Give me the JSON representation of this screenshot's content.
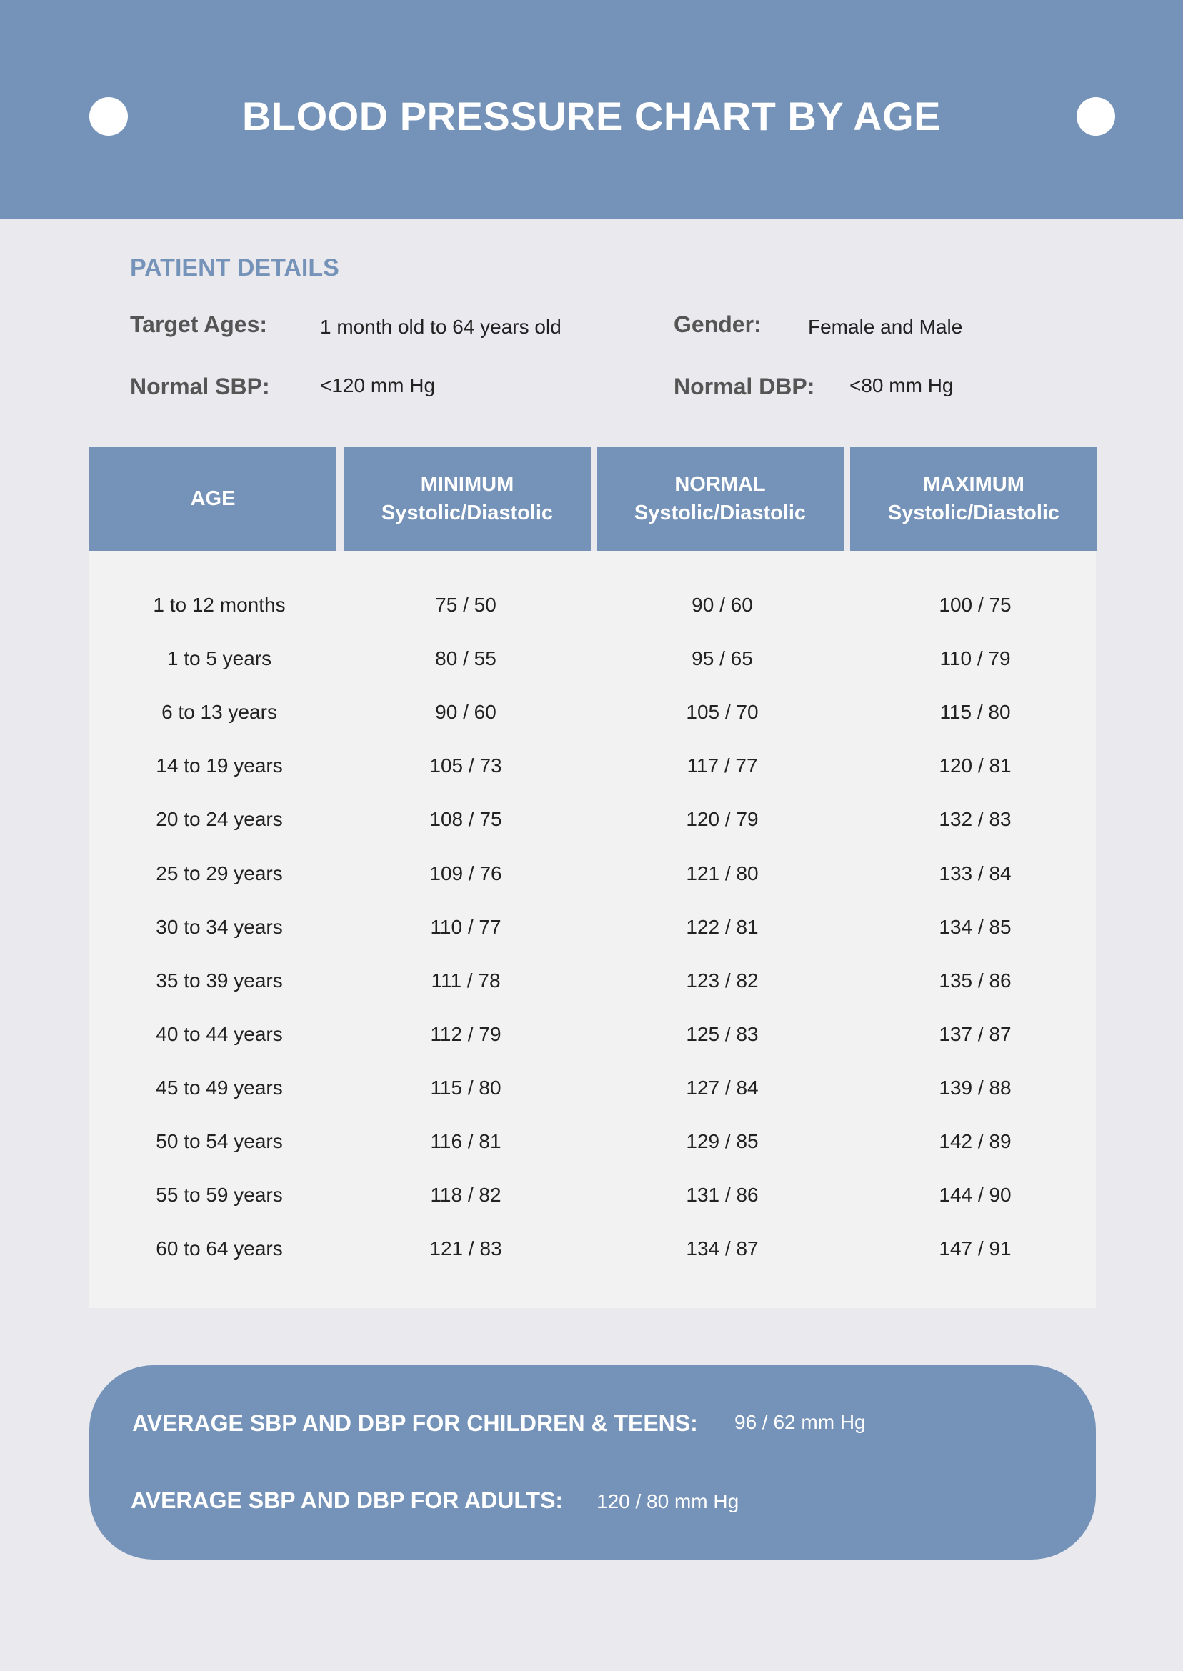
{
  "title": "BLOOD PRESSURE CHART BY AGE",
  "colors": {
    "accent": "#7593b9",
    "background": "#e9e9ee",
    "table_body": "#f2f2f3"
  },
  "patient_details": {
    "heading": "PATIENT DETAILS",
    "target_ages_label": "Target Ages:",
    "target_ages_value": "1 month old to 64 years old",
    "gender_label": "Gender:",
    "gender_value": "Female and Male",
    "normal_sbp_label": "Normal SBP:",
    "normal_sbp_value": "<120 mm Hg",
    "normal_dbp_label": "Normal DBP:",
    "normal_dbp_value": "<80 mm Hg"
  },
  "table": {
    "headers": [
      {
        "line1": "AGE",
        "line2": ""
      },
      {
        "line1": "MINIMUM",
        "line2": "Systolic/Diastolic"
      },
      {
        "line1": "NORMAL",
        "line2": "Systolic/Diastolic"
      },
      {
        "line1": "MAXIMUM",
        "line2": "Systolic/Diastolic"
      }
    ],
    "rows": [
      [
        "1 to 12 months",
        "75 / 50",
        "90 / 60",
        "100 / 75"
      ],
      [
        "1 to 5 years",
        "80 / 55",
        "95 / 65",
        "110 / 79"
      ],
      [
        "6 to 13 years",
        "90 / 60",
        "105 / 70",
        "115 / 80"
      ],
      [
        "14 to 19 years",
        "105 / 73",
        "117 / 77",
        "120 / 81"
      ],
      [
        "20 to 24 years",
        "108 / 75",
        "120 / 79",
        "132 / 83"
      ],
      [
        "25 to 29 years",
        "109 / 76",
        "121 / 80",
        "133 / 84"
      ],
      [
        "30 to 34 years",
        "110 / 77",
        "122 / 81",
        "134 / 85"
      ],
      [
        "35 to 39 years",
        "111 / 78",
        "123 / 82",
        "135 / 86"
      ],
      [
        "40 to 44 years",
        "112 / 79",
        "125 / 83",
        "137 / 87"
      ],
      [
        "45 to 49 years",
        "115 / 80",
        "127 / 84",
        "139 / 88"
      ],
      [
        "50 to 54 years",
        "116 / 81",
        "129 / 85",
        "142 / 89"
      ],
      [
        "55 to 59 years",
        "118 / 82",
        "131 / 86",
        "144 / 90"
      ],
      [
        "60 to 64 years",
        "121 / 83",
        "134 / 87",
        "147 / 91"
      ]
    ]
  },
  "averages": {
    "children_label": "AVERAGE SBP AND DBP FOR CHILDREN & TEENS:",
    "children_value": "96 / 62 mm Hg",
    "adults_label": "AVERAGE SBP AND DBP FOR ADULTS:",
    "adults_value": "120 / 80 mm Hg"
  }
}
